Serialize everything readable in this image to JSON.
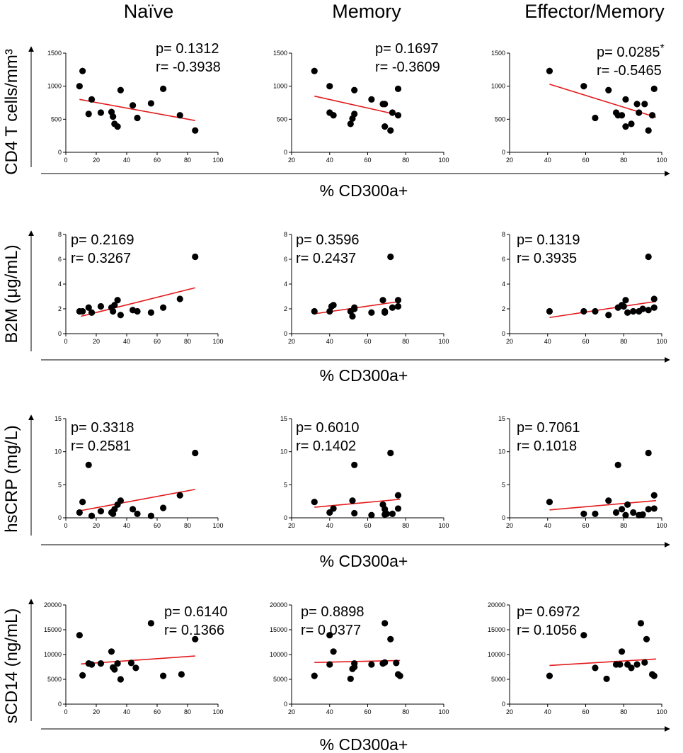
{
  "column_titles": [
    "Naïve",
    "Memory",
    "Effector/Memory"
  ],
  "x_axis_label": "% CD300a+",
  "y_axis_labels": [
    "CD4 T cells/mm³",
    "B2M (μg/mL)",
    "hsCRP (mg/L)",
    "sCD14 (ng/mL)"
  ],
  "colors": {
    "points": "#000000",
    "fit_line": "#e31a1c",
    "axes": "#000000"
  },
  "chart_data": [
    {
      "type": "scatter",
      "row": 0,
      "col": 0,
      "ylabel": "CD4 T cells/mm³",
      "xlabel": "% CD300a+",
      "xlim": [
        0,
        100
      ],
      "xticks": [
        0,
        20,
        40,
        60,
        80,
        100
      ],
      "ylim": [
        0,
        1500
      ],
      "yticks": [
        0,
        500,
        1000,
        1500
      ],
      "p_text": "p= 0.1312",
      "r_text": "r= -0.3938",
      "x": [
        9,
        11,
        15,
        17,
        23,
        30,
        31,
        32,
        34,
        36,
        44,
        47,
        56,
        64,
        75,
        85
      ],
      "y": [
        1000,
        1230,
        580,
        800,
        600,
        610,
        540,
        430,
        390,
        940,
        710,
        520,
        740,
        960,
        560,
        330
      ],
      "fit": [
        [
          9,
          800
        ],
        [
          85,
          480
        ]
      ]
    },
    {
      "type": "scatter",
      "row": 0,
      "col": 1,
      "ylabel": "CD4 T cells/mm³",
      "xlabel": "% CD300a+",
      "xlim": [
        20,
        100
      ],
      "xticks": [
        20,
        40,
        60,
        80,
        100
      ],
      "ylim": [
        0,
        1500
      ],
      "yticks": [
        0,
        500,
        1000,
        1500
      ],
      "p_text": "p= 0.1697",
      "r_text": "r= -0.3609",
      "x": [
        32,
        40,
        40,
        42,
        51,
        52,
        53,
        53,
        62,
        68,
        69,
        69,
        72,
        73,
        76,
        76
      ],
      "y": [
        1230,
        1000,
        600,
        560,
        430,
        510,
        940,
        580,
        800,
        730,
        390,
        730,
        330,
        600,
        560,
        960
      ],
      "fit": [
        [
          32,
          850
        ],
        [
          77,
          560
        ]
      ]
    },
    {
      "type": "scatter",
      "row": 0,
      "col": 2,
      "ylabel": "CD4 T cells/mm³",
      "xlabel": "% CD300a+",
      "xlim": [
        20,
        100
      ],
      "xticks": [
        20,
        40,
        60,
        80,
        100
      ],
      "ylim": [
        0,
        1500
      ],
      "yticks": [
        0,
        500,
        1000,
        1500
      ],
      "p_text": "p= 0.0285",
      "p_sup": "*",
      "r_text": "r= -0.5465",
      "x": [
        41,
        59,
        65,
        72,
        76,
        77,
        79,
        81,
        81,
        84,
        87,
        88,
        91,
        93,
        95,
        96
      ],
      "y": [
        1230,
        1000,
        520,
        940,
        600,
        560,
        560,
        800,
        390,
        430,
        730,
        600,
        730,
        330,
        560,
        960
      ],
      "fit": [
        [
          41,
          1030
        ],
        [
          97,
          530
        ]
      ]
    },
    {
      "type": "scatter",
      "row": 1,
      "col": 0,
      "ylabel": "B2M (μg/mL)",
      "xlabel": "% CD300a+",
      "xlim": [
        0,
        100
      ],
      "xticks": [
        0,
        20,
        40,
        60,
        80,
        100
      ],
      "ylim": [
        0,
        8
      ],
      "yticks": [
        0,
        2,
        4,
        6,
        8
      ],
      "p_text": "p= 0.2169",
      "r_text": "r= 0.3267",
      "x": [
        9,
        11,
        15,
        17,
        23,
        30,
        31,
        32,
        34,
        36,
        44,
        47,
        56,
        64,
        75,
        85
      ],
      "y": [
        1.8,
        1.8,
        2.1,
        1.7,
        2.2,
        2.1,
        1.8,
        2.3,
        2.7,
        1.5,
        1.9,
        1.8,
        1.7,
        2.1,
        2.8,
        6.2
      ],
      "fit": [
        [
          10,
          1.4
        ],
        [
          85,
          3.7
        ]
      ]
    },
    {
      "type": "scatter",
      "row": 1,
      "col": 1,
      "ylabel": "B2M (μg/mL)",
      "xlabel": "% CD300a+",
      "xlim": [
        20,
        100
      ],
      "xticks": [
        20,
        40,
        60,
        80,
        100
      ],
      "ylim": [
        0,
        8
      ],
      "yticks": [
        0,
        2,
        4,
        6,
        8
      ],
      "p_text": "p= 0.3596",
      "r_text": "r= 0.2437",
      "x": [
        32,
        40,
        41,
        42,
        51,
        52,
        53,
        53,
        62,
        68,
        69,
        69,
        72,
        73,
        76,
        76
      ],
      "y": [
        1.8,
        1.8,
        2.2,
        2.3,
        1.8,
        1.4,
        2.1,
        2.0,
        1.7,
        2.7,
        1.8,
        1.7,
        6.2,
        2.1,
        2.7,
        2.2
      ],
      "fit": [
        [
          32,
          1.6
        ],
        [
          77,
          2.6
        ]
      ]
    },
    {
      "type": "scatter",
      "row": 1,
      "col": 2,
      "ylabel": "B2M (μg/mL)",
      "xlabel": "% CD300a+",
      "xlim": [
        20,
        100
      ],
      "xticks": [
        20,
        40,
        60,
        80,
        100
      ],
      "ylim": [
        0,
        8
      ],
      "yticks": [
        0,
        2,
        4,
        6,
        8
      ],
      "p_text": "p= 0.1319",
      "r_text": "r= 0.3935",
      "x": [
        41,
        59,
        65,
        72,
        77,
        79,
        80,
        81,
        82,
        85,
        88,
        90,
        93,
        93,
        96,
        96
      ],
      "y": [
        1.8,
        1.8,
        1.8,
        1.5,
        2.1,
        2.3,
        2.2,
        2.7,
        1.7,
        1.8,
        1.8,
        2.0,
        1.9,
        6.2,
        2.1,
        2.8
      ],
      "fit": [
        [
          41,
          1.3
        ],
        [
          97,
          2.6
        ]
      ]
    },
    {
      "type": "scatter",
      "row": 2,
      "col": 0,
      "ylabel": "hsCRP (mg/L)",
      "xlabel": "% CD300a+",
      "xlim": [
        0,
        100
      ],
      "xticks": [
        0,
        20,
        40,
        60,
        80,
        100
      ],
      "ylim": [
        0,
        15
      ],
      "yticks": [
        0,
        5,
        10,
        15
      ],
      "p_text": "p= 0.3318",
      "r_text": "r= 0.2581",
      "x": [
        9,
        11,
        15,
        17,
        23,
        30,
        31,
        32,
        34,
        36,
        44,
        47,
        56,
        64,
        75,
        85
      ],
      "y": [
        0.8,
        2.4,
        8.0,
        0.3,
        1.0,
        0.8,
        0.6,
        1.3,
        2.0,
        2.6,
        1.3,
        0.6,
        0.3,
        1.5,
        3.4,
        9.8
      ],
      "fit": [
        [
          10,
          1.1
        ],
        [
          85,
          4.3
        ]
      ]
    },
    {
      "type": "scatter",
      "row": 2,
      "col": 1,
      "ylabel": "hsCRP (mg/L)",
      "xlabel": "% CD300a+",
      "xlim": [
        20,
        100
      ],
      "xticks": [
        20,
        40,
        60,
        80,
        100
      ],
      "ylim": [
        0,
        15
      ],
      "yticks": [
        0,
        5,
        10,
        15
      ],
      "p_text": "p= 0.6010",
      "r_text": "r= 0.1402",
      "x": [
        32,
        40,
        42,
        52,
        53,
        53,
        62,
        68,
        69,
        69,
        70,
        72,
        73,
        76,
        76
      ],
      "y": [
        2.4,
        0.8,
        1.4,
        2.6,
        8.0,
        0.7,
        0.4,
        2.0,
        0.5,
        1.3,
        0.6,
        9.8,
        0.6,
        3.4,
        1.4
      ],
      "fit": [
        [
          32,
          1.6
        ],
        [
          77,
          2.8
        ]
      ]
    },
    {
      "type": "scatter",
      "row": 2,
      "col": 2,
      "ylabel": "hsCRP (mg/L)",
      "xlabel": "% CD300a+",
      "xlim": [
        20,
        100
      ],
      "xticks": [
        20,
        40,
        60,
        80,
        100
      ],
      "ylim": [
        0,
        15
      ],
      "yticks": [
        0,
        5,
        10,
        15
      ],
      "p_text": "p= 0.7061",
      "r_text": "r= 0.1018",
      "x": [
        41,
        59,
        65,
        72,
        76,
        77,
        79,
        81,
        82,
        85,
        88,
        90,
        93,
        93,
        96,
        96
      ],
      "y": [
        2.4,
        0.6,
        0.6,
        2.6,
        0.8,
        8.0,
        1.3,
        0.4,
        2.0,
        0.8,
        0.4,
        0.5,
        1.3,
        9.8,
        3.4,
        1.4
      ],
      "fit": [
        [
          41,
          1.2
        ],
        [
          97,
          2.6
        ]
      ]
    },
    {
      "type": "scatter",
      "row": 3,
      "col": 0,
      "ylabel": "sCD14 (ng/mL)",
      "xlabel": "% CD300a+",
      "xlim": [
        0,
        100
      ],
      "xticks": [
        0,
        20,
        40,
        60,
        80,
        100
      ],
      "ylim": [
        0,
        20000
      ],
      "yticks": [
        0,
        5000,
        10000,
        15000,
        20000
      ],
      "p_text": "p= 0.6140",
      "r_text": "r= 0.1366",
      "x": [
        9,
        11,
        15,
        17,
        23,
        30,
        31,
        32,
        34,
        36,
        43,
        46,
        56,
        64,
        76,
        85
      ],
      "y": [
        13900,
        5800,
        8200,
        8000,
        8200,
        10600,
        7400,
        7000,
        8200,
        5000,
        8300,
        7300,
        16300,
        5700,
        6000,
        13100
      ],
      "fit": [
        [
          10,
          8100
        ],
        [
          85,
          9700
        ]
      ]
    },
    {
      "type": "scatter",
      "row": 3,
      "col": 1,
      "ylabel": "sCD14 (ng/mL)",
      "xlabel": "% CD300a+",
      "xlim": [
        20,
        100
      ],
      "xticks": [
        20,
        40,
        60,
        80,
        100
      ],
      "ylim": [
        0,
        20000
      ],
      "yticks": [
        0,
        5000,
        10000,
        15000,
        20000
      ],
      "p_text": "p= 0.8898",
      "r_text": "r= 0.0377",
      "x": [
        32,
        40,
        40,
        42,
        51,
        52,
        53,
        53,
        62,
        68,
        69,
        69,
        72,
        75,
        76,
        77
      ],
      "y": [
        5700,
        13900,
        8000,
        10600,
        5100,
        7100,
        7500,
        8200,
        8000,
        8200,
        16300,
        8400,
        13100,
        8300,
        6000,
        5700
      ],
      "fit": [
        [
          32,
          8400
        ],
        [
          77,
          8800
        ]
      ]
    },
    {
      "type": "scatter",
      "row": 3,
      "col": 2,
      "ylabel": "sCD14 (ng/mL)",
      "xlabel": "% CD300a+",
      "xlim": [
        20,
        100
      ],
      "xticks": [
        20,
        40,
        60,
        80,
        100
      ],
      "ylim": [
        0,
        20000
      ],
      "yticks": [
        0,
        5000,
        10000,
        15000,
        20000
      ],
      "p_text": "p= 0.6972",
      "r_text": "r= 0.1056",
      "x": [
        41,
        59,
        65,
        71,
        76,
        78,
        79,
        82,
        84,
        87,
        89,
        91,
        92,
        95,
        96
      ],
      "y": [
        5700,
        13900,
        7300,
        5100,
        8000,
        8000,
        10600,
        8000,
        7300,
        8000,
        16300,
        8400,
        13100,
        6000,
        5700
      ],
      "fit": [
        [
          41,
          7800
        ],
        [
          97,
          9100
        ]
      ]
    }
  ]
}
